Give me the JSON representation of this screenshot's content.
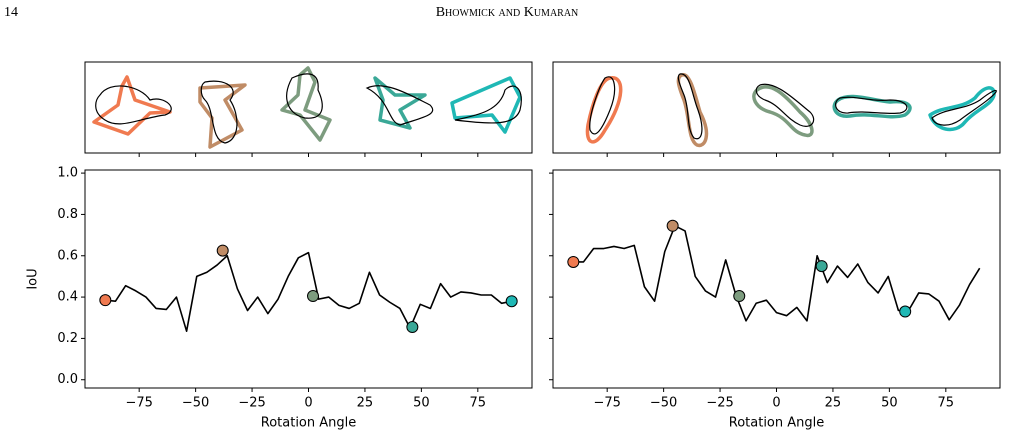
{
  "header": {
    "page_number": "14",
    "running_head": "Bhowmick and Kumaran"
  },
  "chart_data": [
    {
      "type": "line",
      "xlabel": "Rotation Angle",
      "ylabel": "IoU",
      "x": [
        -90,
        -85.5,
        -81,
        -76.5,
        -72,
        -67.5,
        -63,
        -58.5,
        -54,
        -49.5,
        -45,
        -40.5,
        -36,
        -31.5,
        -27,
        -22.5,
        -18,
        -13.5,
        -9,
        -4.5,
        0,
        4.5,
        9,
        13.5,
        18,
        22.5,
        27,
        31.5,
        36,
        40.5,
        45,
        49.5,
        54,
        58.5,
        63,
        67.5,
        72,
        76.5,
        81,
        85.5,
        90
      ],
      "series": [
        {
          "color": "#000000",
          "values": [
            0.385,
            0.38,
            0.455,
            0.43,
            0.4,
            0.345,
            0.34,
            0.4,
            0.235,
            0.5,
            0.52,
            0.555,
            0.6,
            0.44,
            0.335,
            0.4,
            0.32,
            0.39,
            0.5,
            0.59,
            0.615,
            0.39,
            0.4,
            0.36,
            0.345,
            0.37,
            0.52,
            0.41,
            0.375,
            0.345,
            0.25,
            0.365,
            0.345,
            0.465,
            0.4,
            0.425,
            0.42,
            0.41,
            0.41,
            0.37,
            0.38
          ]
        }
      ],
      "points": {
        "x": [
          -90,
          -38,
          2,
          46,
          90
        ],
        "y": [
          0.385,
          0.625,
          0.405,
          0.255,
          0.38
        ],
        "colors": [
          "#f07a50",
          "#c08c66",
          "#7d9c7f",
          "#3aa897",
          "#1fb8b5"
        ]
      },
      "xlim": [
        -99,
        99
      ],
      "ylim": [
        -0.04,
        1.015
      ],
      "xticks": [
        {
          "value": -75,
          "label": "−75"
        },
        {
          "value": -50,
          "label": "−50"
        },
        {
          "value": -25,
          "label": "−25"
        },
        0,
        25,
        50,
        75
      ],
      "yticks": [
        {
          "value": 0,
          "label": "0.0"
        },
        0.2,
        0.4,
        0.6,
        0.8,
        {
          "value": 1,
          "label": "1.0"
        }
      ],
      "show_yticklabels": true
    },
    {
      "type": "line",
      "xlabel": "Rotation Angle",
      "x": [
        -90,
        -85.5,
        -81,
        -76.5,
        -72,
        -67.5,
        -63,
        -58.5,
        -54,
        -49.5,
        -45,
        -40.5,
        -36,
        -31.5,
        -27,
        -22.5,
        -18,
        -13.5,
        -9,
        -4.5,
        0,
        4.5,
        9,
        13.5,
        18,
        22.5,
        27,
        31.5,
        36,
        40.5,
        45,
        49.5,
        54,
        58.5,
        63,
        67.5,
        72,
        76.5,
        81,
        85.5,
        90
      ],
      "series": [
        {
          "color": "#000000",
          "values": [
            0.57,
            0.57,
            0.635,
            0.635,
            0.645,
            0.635,
            0.65,
            0.45,
            0.38,
            0.62,
            0.745,
            0.72,
            0.5,
            0.43,
            0.4,
            0.58,
            0.41,
            0.285,
            0.37,
            0.385,
            0.325,
            0.31,
            0.35,
            0.285,
            0.6,
            0.47,
            0.55,
            0.495,
            0.56,
            0.47,
            0.42,
            0.5,
            0.335,
            0.335,
            0.42,
            0.415,
            0.38,
            0.29,
            0.36,
            0.46,
            0.54
          ]
        }
      ],
      "points": {
        "x": [
          -90,
          -46,
          -16.5,
          20,
          57
        ],
        "y": [
          0.57,
          0.745,
          0.405,
          0.55,
          0.33
        ],
        "colors": [
          "#f07a50",
          "#c08c66",
          "#7d9c7f",
          "#3aa897",
          "#1fb8b5"
        ]
      },
      "xlim": [
        -99,
        99
      ],
      "ylim": [
        -0.04,
        1.015
      ],
      "xticks": [
        {
          "value": -75,
          "label": "−75"
        },
        {
          "value": -50,
          "label": "−50"
        },
        {
          "value": -25,
          "label": "−25"
        },
        0,
        25,
        50,
        75
      ],
      "yticks": [
        {
          "value": 0,
          "label": "0.0"
        },
        0.2,
        0.4,
        0.6,
        0.8,
        {
          "value": 1,
          "label": "1.0"
        }
      ],
      "show_yticklabels": false
    }
  ]
}
